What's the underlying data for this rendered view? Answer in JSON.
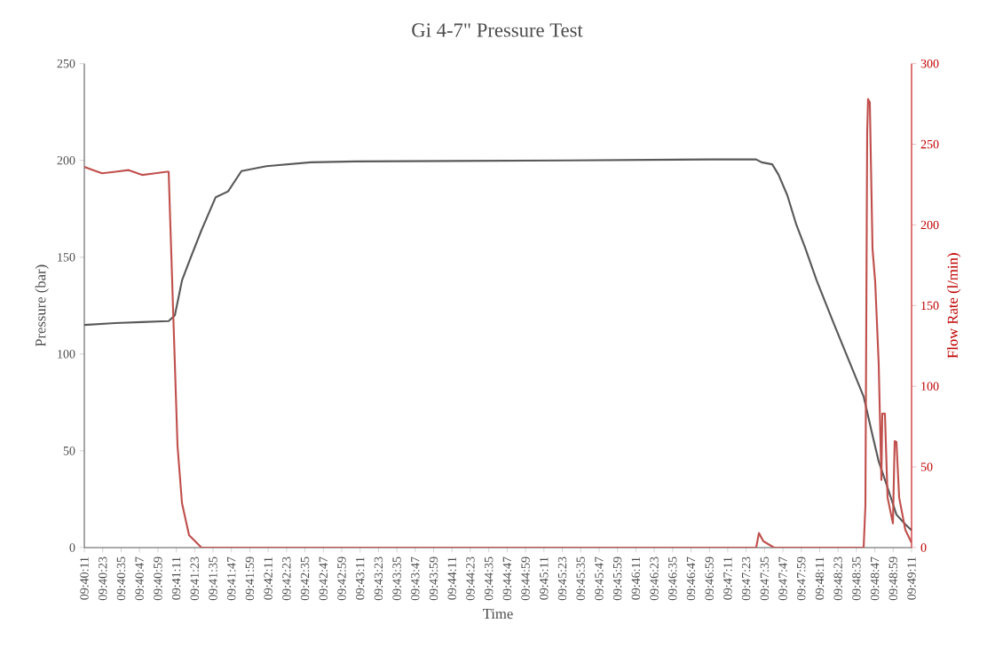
{
  "chart_data": {
    "type": "line",
    "title": "Gi 4-7\" Pressure Test",
    "xlabel": "Time",
    "ylabel": "Pressure (bar)",
    "y2label": "Flow Rate (l/min)",
    "xlim": [
      9.66972,
      9.81972
    ],
    "xticks": [
      {
        "value": 9.66972,
        "label": "09:40:11"
      },
      {
        "value": 9.67306,
        "label": "09:40:23"
      },
      {
        "value": 9.67639,
        "label": "09:40:35"
      },
      {
        "value": 9.67972,
        "label": "09:40:47"
      },
      {
        "value": 9.68306,
        "label": "09:40:59"
      },
      {
        "value": 9.68639,
        "label": "09:41:11"
      },
      {
        "value": 9.68972,
        "label": "09:41:23"
      },
      {
        "value": 9.69306,
        "label": "09:41:35"
      },
      {
        "value": 9.69639,
        "label": "09:41:47"
      },
      {
        "value": 9.69972,
        "label": "09:41:59"
      },
      {
        "value": 9.70306,
        "label": "09:42:11"
      },
      {
        "value": 9.70639,
        "label": "09:42:23"
      },
      {
        "value": 9.70972,
        "label": "09:42:35"
      },
      {
        "value": 9.71306,
        "label": "09:42:47"
      },
      {
        "value": 9.71639,
        "label": "09:42:59"
      },
      {
        "value": 9.71972,
        "label": "09:43:11"
      },
      {
        "value": 9.72306,
        "label": "09:43:23"
      },
      {
        "value": 9.72639,
        "label": "09:43:35"
      },
      {
        "value": 9.72972,
        "label": "09:43:47"
      },
      {
        "value": 9.73306,
        "label": "09:43:59"
      },
      {
        "value": 9.73639,
        "label": "09:44:11"
      },
      {
        "value": 9.73972,
        "label": "09:44:23"
      },
      {
        "value": 9.74306,
        "label": "09:44:35"
      },
      {
        "value": 9.74639,
        "label": "09:44:47"
      },
      {
        "value": 9.74972,
        "label": "09:44:59"
      },
      {
        "value": 9.75306,
        "label": "09:45:11"
      },
      {
        "value": 9.75639,
        "label": "09:45:23"
      },
      {
        "value": 9.75972,
        "label": "09:45:35"
      },
      {
        "value": 9.76306,
        "label": "09:45:47"
      },
      {
        "value": 9.76639,
        "label": "09:45:59"
      },
      {
        "value": 9.76972,
        "label": "09:46:11"
      },
      {
        "value": 9.77306,
        "label": "09:46:23"
      },
      {
        "value": 9.77639,
        "label": "09:46:35"
      },
      {
        "value": 9.77972,
        "label": "09:46:47"
      },
      {
        "value": 9.78306,
        "label": "09:46:59"
      },
      {
        "value": 9.78639,
        "label": "09:47:11"
      },
      {
        "value": 9.78972,
        "label": "09:47:23"
      },
      {
        "value": 9.79306,
        "label": "09:47:35"
      },
      {
        "value": 9.79639,
        "label": "09:47:47"
      },
      {
        "value": 9.79972,
        "label": "09:47:59"
      },
      {
        "value": 9.80306,
        "label": "09:48:11"
      },
      {
        "value": 9.80639,
        "label": "09:48:23"
      },
      {
        "value": 9.80972,
        "label": "09:48:35"
      },
      {
        "value": 9.81306,
        "label": "09:48:47"
      },
      {
        "value": 9.81639,
        "label": "09:48:59"
      },
      {
        "value": 9.81972,
        "label": "09:49:11"
      }
    ],
    "ylim": [
      0,
      250
    ],
    "yticks": [
      0,
      50,
      100,
      150,
      200,
      250
    ],
    "y2lim": [
      0,
      300
    ],
    "y2ticks": [
      0,
      50,
      100,
      150,
      200,
      250,
      300
    ],
    "series": [
      {
        "color": "#595959",
        "x": [
          9.66972,
          9.67536,
          9.68018,
          9.68501,
          9.68614,
          9.68743,
          9.68903,
          9.69097,
          9.69354,
          9.69579,
          9.69821,
          9.70272,
          9.71076,
          9.71881,
          9.75743,
          9.78319,
          9.79155,
          9.79252,
          9.79445,
          9.79558,
          9.79719,
          9.7988,
          9.80041,
          9.8025,
          9.80572,
          9.80845,
          9.81103,
          9.81264,
          9.81376,
          9.81537,
          9.81698,
          9.81859,
          9.81972
        ],
        "values": [
          115,
          116,
          116.5,
          117,
          120,
          138,
          150,
          164,
          181,
          184,
          194.5,
          197,
          199,
          199.5,
          200,
          200.5,
          200.5,
          199,
          198,
          192.7,
          182,
          167,
          155,
          138,
          115,
          96,
          78,
          58,
          44.5,
          31,
          17,
          12,
          9
        ]
      },
      {
        "color": "#c0504d",
        "axis": "y2",
        "x": [
          9.66972,
          9.67133,
          9.67294,
          9.67536,
          9.67777,
          9.68018,
          9.6826,
          9.68469,
          9.68501,
          9.68582,
          9.68662,
          9.68743,
          9.68871,
          9.69097,
          9.79155,
          9.79204,
          9.79284,
          9.79477,
          9.81103,
          9.81135,
          9.81167,
          9.81183,
          9.81215,
          9.81264,
          9.81312,
          9.81376,
          9.81425,
          9.81441,
          9.81489,
          9.81537,
          9.81634,
          9.81666,
          9.81698,
          9.81747,
          9.81859,
          9.81972
        ],
        "values": [
          236,
          234,
          232,
          233,
          234,
          231,
          232,
          233,
          233,
          147,
          63,
          27.5,
          7.7,
          0,
          0,
          9,
          4,
          0,
          0,
          26,
          257,
          278,
          276,
          185,
          165,
          114,
          42,
          83,
          83,
          31,
          15,
          66,
          65.5,
          31,
          11,
          3
        ]
      }
    ]
  }
}
